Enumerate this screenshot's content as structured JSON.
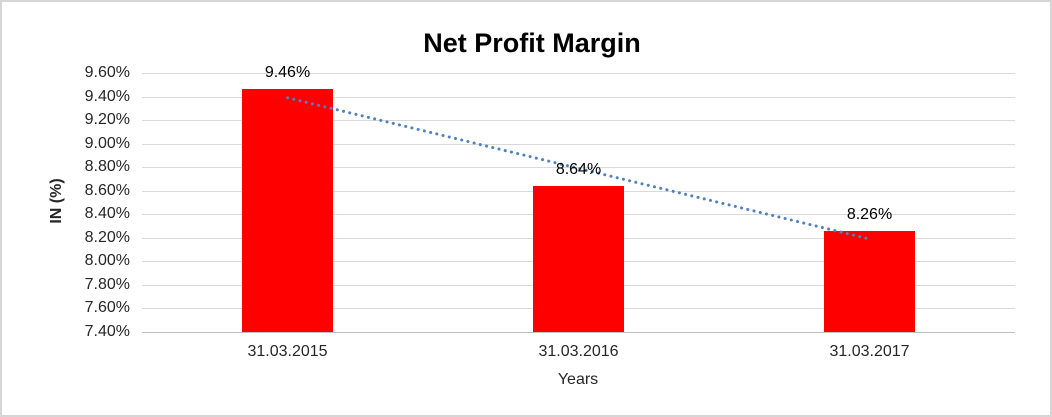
{
  "chart_data": {
    "type": "bar",
    "title": "Net Profit Margin",
    "xlabel": "Years",
    "ylabel": "IN (%)",
    "categories": [
      "31.03.2015",
      "31.03.2016",
      "31.03.2017"
    ],
    "values": [
      9.46,
      8.64,
      8.26
    ],
    "data_labels": [
      "9.46%",
      "8.64%",
      "8.26%"
    ],
    "ylim": [
      7.4,
      9.6
    ],
    "ytick_step": 0.2,
    "ytick_labels": [
      "9.60%",
      "9.40%",
      "9.20%",
      "9.00%",
      "8.80%",
      "8.60%",
      "8.40%",
      "8.20%",
      "8.00%",
      "7.80%",
      "7.60%",
      "7.40%"
    ],
    "grid": true,
    "legend": "none",
    "bar_color": "#ff0000",
    "gridline_color": "#d9d9d9",
    "trendline": {
      "type": "linear",
      "style": "dotted",
      "color": "#4f81bd",
      "start_value": 9.39,
      "end_value": 8.19,
      "start_category_index": 0,
      "end_category_index": 2
    }
  }
}
